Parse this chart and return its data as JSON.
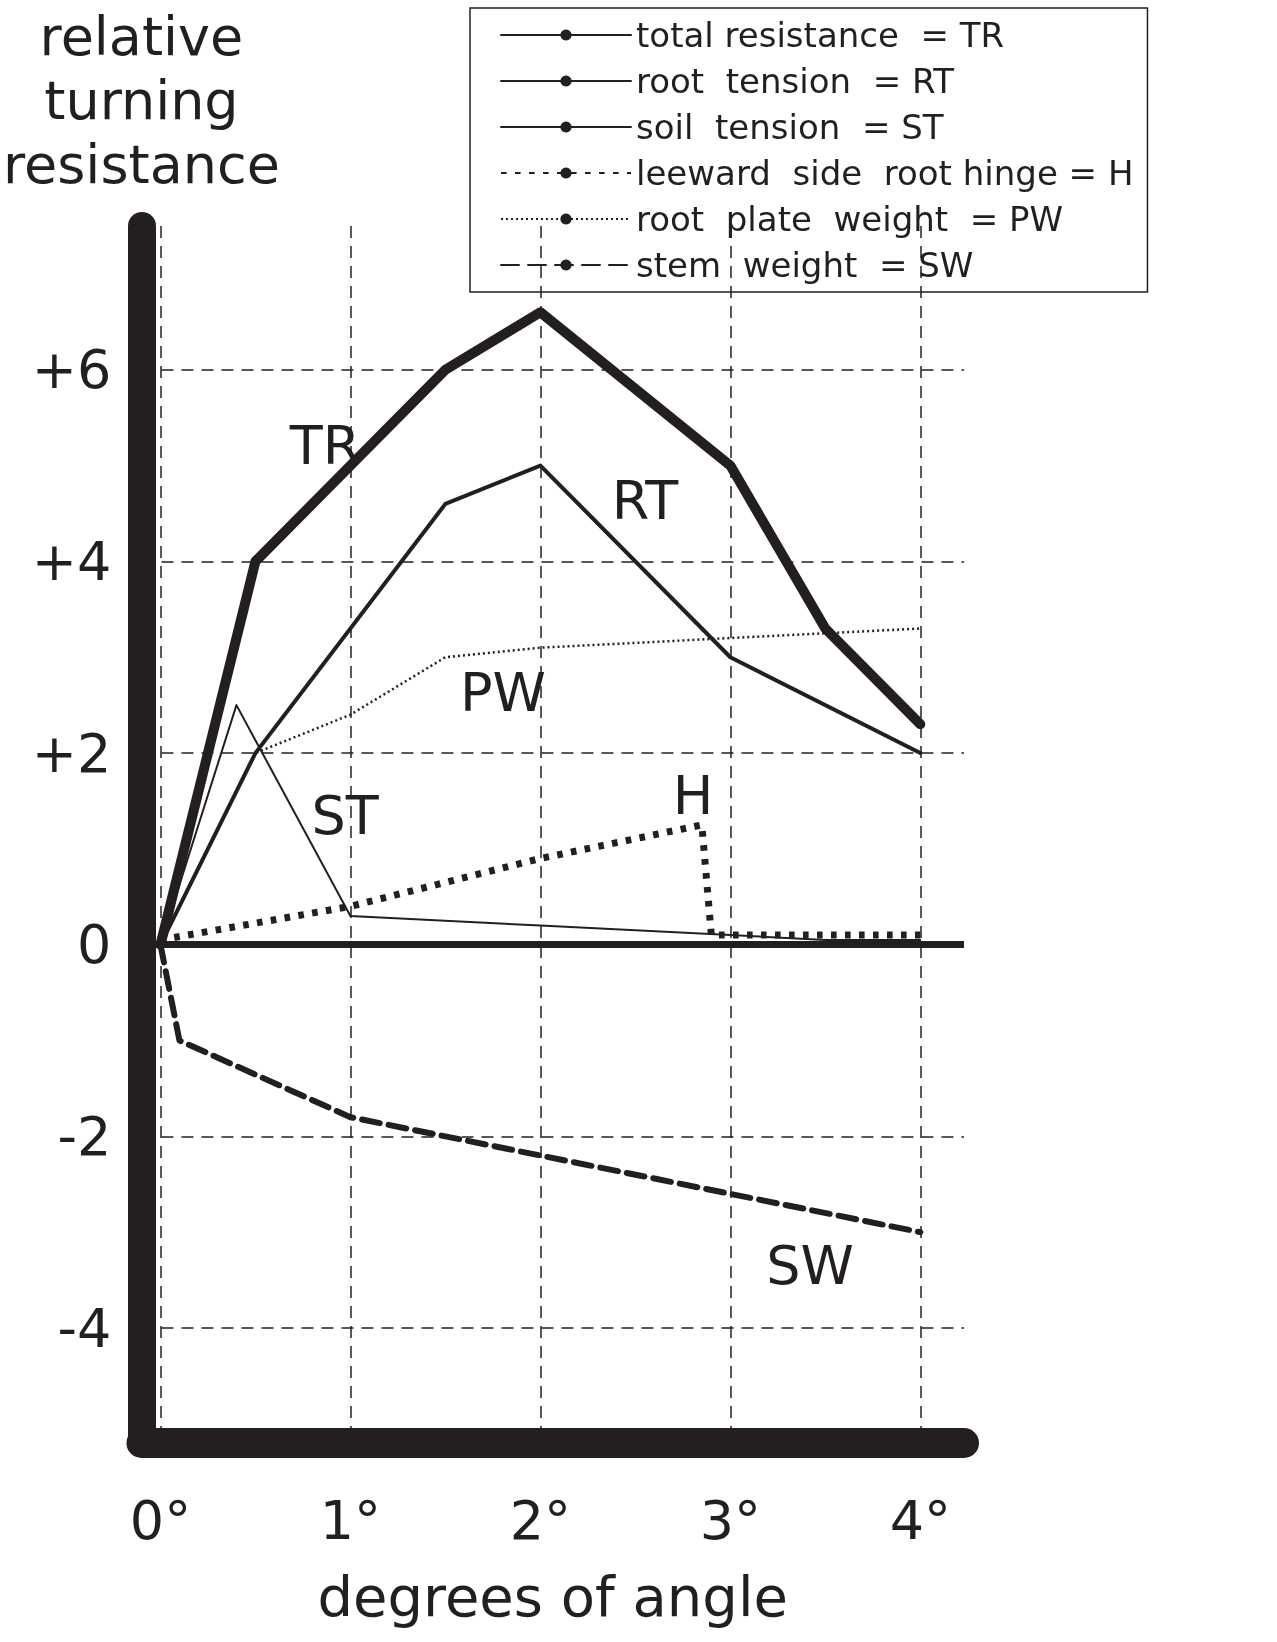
{
  "chart_data": {
    "type": "line",
    "xlabel": "degrees of angle",
    "ylabel": "relative turning resistance",
    "xlim": [
      -0.1,
      4.23
    ],
    "ylim": [
      -5.2,
      7.5
    ],
    "xticks": [
      {
        "value": 0,
        "label": "0°"
      },
      {
        "value": 1,
        "label": "1°"
      },
      {
        "value": 2,
        "label": "2°"
      },
      {
        "value": 3,
        "label": "3°"
      },
      {
        "value": 4,
        "label": "4°"
      }
    ],
    "yticks": [
      {
        "value": -4,
        "label": "-4"
      },
      {
        "value": -2,
        "label": "-2"
      },
      {
        "value": 0,
        "label": "0"
      },
      {
        "value": 2,
        "label": "+2"
      },
      {
        "value": 4,
        "label": "+4"
      },
      {
        "value": 6,
        "label": "+6"
      }
    ],
    "grid": true,
    "legend": "top right",
    "marker": "none",
    "ref_lines": [
      {
        "axis": "y",
        "value": 0,
        "label": null,
        "color": "#231f20",
        "line_style": "solid"
      }
    ],
    "series": [
      {
        "name": "total resistance  = TR",
        "color": "#231f20",
        "line_style": "solid",
        "x": [
          0,
          0.5,
          1.5,
          2,
          3,
          3.5,
          4
        ],
        "values": [
          0,
          4.0,
          6.0,
          6.6,
          5.0,
          3.3,
          2.3
        ]
      },
      {
        "name": "root  tension  = RT",
        "color": "#231f20",
        "line_style": "solid",
        "x": [
          0,
          0.5,
          1.5,
          2,
          3,
          4
        ],
        "values": [
          0,
          2.0,
          4.6,
          5.0,
          3.0,
          2.0
        ]
      },
      {
        "name": "soil  tension  = ST",
        "color": "#231f20",
        "line_style": "solid",
        "x": [
          0,
          0.4,
          1,
          2,
          3,
          3.5,
          4
        ],
        "values": [
          0,
          2.5,
          0.3,
          0.2,
          0.1,
          0.05,
          0.05
        ]
      },
      {
        "name": "leeward  side  root hinge = H",
        "color": "#231f20",
        "line_style": "dotted",
        "x": [
          0,
          1,
          2,
          2.85,
          2.9,
          4
        ],
        "values": [
          0.05,
          0.4,
          0.9,
          1.25,
          0.1,
          0.1
        ]
      },
      {
        "name": "root  plate  weight  = PW",
        "color": "#231f20",
        "line_style": "dotted",
        "x": [
          0,
          0.5,
          1,
          1.5,
          2,
          3,
          4
        ],
        "values": [
          0,
          2.0,
          2.4,
          3.0,
          3.1,
          3.2,
          3.3
        ]
      },
      {
        "name": "stem  weight  = SW",
        "color": "#231f20",
        "line_style": "dashed",
        "x": [
          0,
          0.1,
          1,
          2,
          3,
          4
        ],
        "values": [
          0,
          -1.0,
          -1.8,
          -2.2,
          -2.6,
          -3.0
        ]
      }
    ],
    "annotations": [
      "TR",
      "RT",
      "PW",
      "ST",
      "H",
      "SW"
    ]
  }
}
